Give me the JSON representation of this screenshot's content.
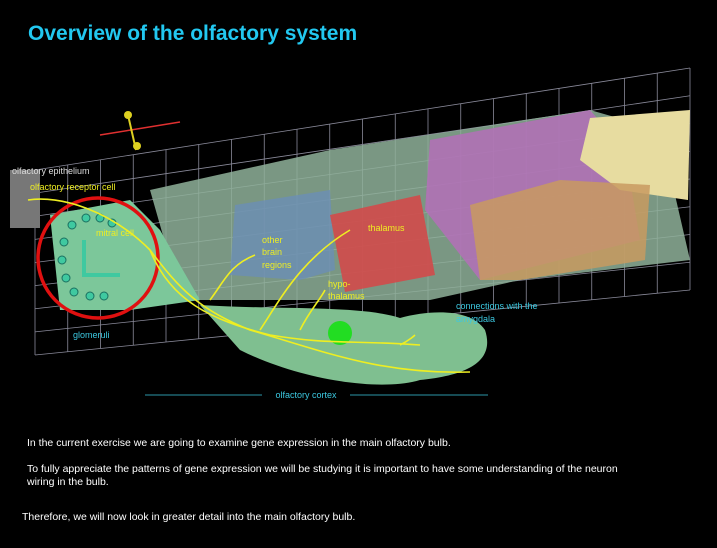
{
  "header": {
    "title": "Overview of the olfactory system"
  },
  "labels": {
    "olfactory_epithelium": "olfactory epithelium",
    "olfactory_receptor_cell": "olfactory receptor cell",
    "mitral_cell": "mitral cell",
    "glomeruli": "glomeruli",
    "other_brain_regions": [
      "other",
      "brain",
      "regions"
    ],
    "thalamus": "thalamus",
    "hypothalamus": [
      "hypo-",
      "thalamus"
    ],
    "amygdala": [
      "connections with the",
      "amygdala"
    ],
    "olfactory_cortex": "olfactory cortex"
  },
  "paragraphs": [
    [
      "In the current exercise we are going to examine gene expression in the main olfactory bulb."
    ],
    [
      "To fully appreciate the patterns of gene expression we will be studying it is important to have some understanding of the neuron",
      "wiring in the bulb."
    ],
    [
      "Therefore, we will now look in greater detail into the main olfactory bulb."
    ]
  ]
}
